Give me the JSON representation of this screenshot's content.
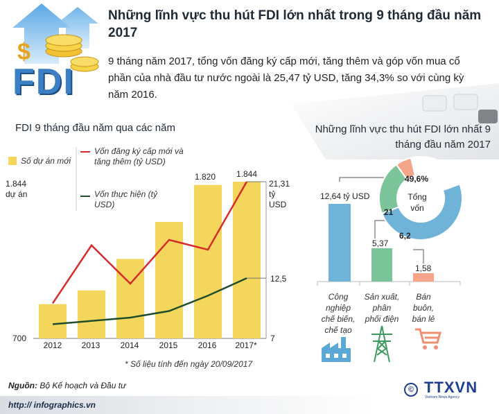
{
  "header": {
    "title": "Những lĩnh vực thu hút FDI lớn nhất trong 9 tháng đầu năm 2017",
    "logo_text": "FDI",
    "intro": "9 tháng năm 2017, tổng vốn đăng ký cấp mới, tăng thêm và góp vốn mua cổ phần của nhà đầu tư nước ngoài là 25,47 tỷ USD, tăng 34,3% so với cùng kỳ năm 2016."
  },
  "left_section_title": "FDI 9 tháng đầu năm qua các năm",
  "right_section_title": "Những lĩnh vực thu hút FDI lớn nhất 9 tháng đầu năm 2017",
  "left_axis": {
    "top_value": "1.844",
    "top_unit": "dự án",
    "bottom_value": "700"
  },
  "right_axis": {
    "top_value": "21,31",
    "top_unit1": "tỷ",
    "top_unit2": "USD",
    "mid_value": "12,5",
    "bottom_value": "7"
  },
  "legend": {
    "bars": "Số dự án mới",
    "red_line": "Vốn đăng ký cấp mới và tăng thêm (tỷ USD)",
    "green_line": "Vốn thực hiện (tỷ USD)"
  },
  "colors": {
    "bar": "#f5d65c",
    "red": "#d62b2b",
    "green": "#1e4d2b",
    "blue": "#6fb3d9",
    "green_light": "#7cc49a",
    "salmon": "#f4a58a"
  },
  "footnote": "* Số liệu tính đến ngày 20/09/2017",
  "sector_chart": {
    "bars": [
      {
        "label": "12,64 tỷ USD",
        "value": 12.64,
        "category": [
          "Công",
          "nghiệp",
          "chế biến,",
          "chế tạo"
        ],
        "icon": "factory-icon"
      },
      {
        "label": "5,37",
        "value": 5.37,
        "category": [
          "Sản xuất,",
          "phân",
          "phối điện"
        ],
        "icon": "power-tower-icon"
      },
      {
        "label": "1,58",
        "value": 1.58,
        "category": [
          "Bán",
          "buôn,",
          "bán lẻ"
        ],
        "icon": "shopping-cart-icon"
      }
    ],
    "donut": {
      "center_line1": "Tổng",
      "center_line2": "vốn",
      "slices": [
        {
          "label": "49,6%",
          "value": 49.6
        },
        {
          "label": "21",
          "value": 21
        },
        {
          "label": "6,2",
          "value": 6.2
        },
        {
          "label": "",
          "value": 23.2
        }
      ]
    }
  },
  "source": {
    "label": "Nguồn:",
    "text": "Bộ Kế hoạch và Đầu tư"
  },
  "url": "http:// infographics.vn",
  "agency": {
    "name": "TTXVN",
    "sub": "Vietnam News Agency",
    "copyright": "©"
  },
  "chart_data": {
    "type": "bar",
    "categories": [
      "2012",
      "2013",
      "2014",
      "2015",
      "2016",
      "2017*"
    ],
    "bar_series": {
      "name": "Số dự án mới",
      "values": [
        950,
        1050,
        1280,
        1550,
        1820,
        1844
      ],
      "ylim": [
        700,
        1844
      ]
    },
    "series": [
      {
        "name": "Vốn đăng ký cấp mới và tăng thêm (tỷ USD)",
        "values": [
          10.2,
          15.5,
          12.0,
          16.0,
          15.1,
          21.31
        ]
      },
      {
        "name": "Vốn thực hiện (tỷ USD)",
        "values": [
          8.3,
          8.6,
          8.9,
          9.5,
          10.9,
          12.5
        ]
      }
    ],
    "y2lim": [
      7,
      21.31
    ],
    "bar_labels": {
      "4": "1.820",
      "5": "1.844"
    },
    "title": "FDI 9 tháng đầu năm qua các năm"
  }
}
